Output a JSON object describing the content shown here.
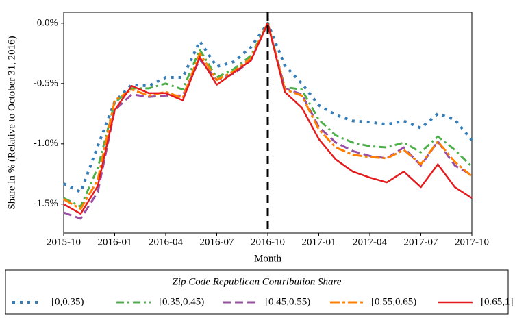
{
  "chart_data": {
    "type": "line",
    "x_label": "Month",
    "y_label": "Share in % (Relative to October 31, 2016)",
    "x": [
      "2015-10",
      "2015-11",
      "2015-12",
      "2016-01",
      "2016-02",
      "2016-03",
      "2016-04",
      "2016-05",
      "2016-06",
      "2016-07",
      "2016-08",
      "2016-09",
      "2016-10",
      "2016-11",
      "2016-12",
      "2017-01",
      "2017-02",
      "2017-03",
      "2017-04",
      "2017-05",
      "2017-06",
      "2017-07",
      "2017-08",
      "2017-09",
      "2017-10"
    ],
    "xticks": [
      "2015-10",
      "2016-01",
      "2016-04",
      "2016-07",
      "2016-10",
      "2017-01",
      "2017-04",
      "2017-07",
      "2017-10"
    ],
    "ylim": [
      -1.74,
      0.09
    ],
    "yticks": [
      {
        "value": 0,
        "label": "0.0%"
      },
      {
        "value": -0.5,
        "label": "-0.5%"
      },
      {
        "value": -1.0,
        "label": "-1.0%"
      },
      {
        "value": -1.5,
        "label": "-1.5%"
      }
    ],
    "vline": "2016-10",
    "legend_title": "Zip Code Republican Contribution Share",
    "legend_position": "bottom",
    "series": [
      {
        "name": "[0,0.35)",
        "color": "#377eb8",
        "linestyle": "dotted",
        "values": [
          -1.33,
          -1.4,
          -1.02,
          -0.65,
          -0.51,
          -0.52,
          -0.45,
          -0.45,
          -0.15,
          -0.36,
          -0.32,
          -0.2,
          0.0,
          -0.35,
          -0.5,
          -0.68,
          -0.76,
          -0.81,
          -0.82,
          -0.84,
          -0.81,
          -0.87,
          -0.75,
          -0.8,
          -0.97
        ]
      },
      {
        "name": "[0.35,0.45)",
        "color": "#4daf4a",
        "linestyle": "dashdot",
        "values": [
          -1.45,
          -1.52,
          -1.2,
          -0.66,
          -0.54,
          -0.54,
          -0.5,
          -0.55,
          -0.22,
          -0.45,
          -0.38,
          -0.27,
          0.0,
          -0.53,
          -0.55,
          -0.8,
          -0.93,
          -0.99,
          -1.02,
          -1.03,
          -0.99,
          -1.07,
          -0.94,
          -1.05,
          -1.19
        ]
      },
      {
        "name": "[0.45,0.55)",
        "color": "#984ea3",
        "linestyle": "dashed",
        "values": [
          -1.57,
          -1.62,
          -1.4,
          -0.72,
          -0.59,
          -0.61,
          -0.6,
          -0.6,
          -0.3,
          -0.47,
          -0.42,
          -0.31,
          0.0,
          -0.54,
          -0.59,
          -0.86,
          -0.99,
          -1.06,
          -1.1,
          -1.12,
          -1.03,
          -1.18,
          -0.98,
          -1.18,
          -1.26
        ]
      },
      {
        "name": "[0.55,0.65)",
        "color": "#ff7f00",
        "linestyle": "longdashdot",
        "values": [
          -1.46,
          -1.54,
          -1.3,
          -0.64,
          -0.55,
          -0.6,
          -0.57,
          -0.62,
          -0.25,
          -0.47,
          -0.4,
          -0.29,
          0.0,
          -0.55,
          -0.6,
          -0.88,
          -1.03,
          -1.09,
          -1.11,
          -1.12,
          -1.05,
          -1.17,
          -0.98,
          -1.15,
          -1.27
        ]
      },
      {
        "name": "[0.65,1]",
        "color": "#e41a1c",
        "linestyle": "solid",
        "values": [
          -1.5,
          -1.58,
          -1.35,
          -0.72,
          -0.52,
          -0.58,
          -0.58,
          -0.64,
          -0.28,
          -0.51,
          -0.41,
          -0.31,
          0.0,
          -0.57,
          -0.7,
          -0.96,
          -1.13,
          -1.23,
          -1.28,
          -1.32,
          -1.23,
          -1.36,
          -1.17,
          -1.36,
          -1.45
        ]
      }
    ]
  }
}
